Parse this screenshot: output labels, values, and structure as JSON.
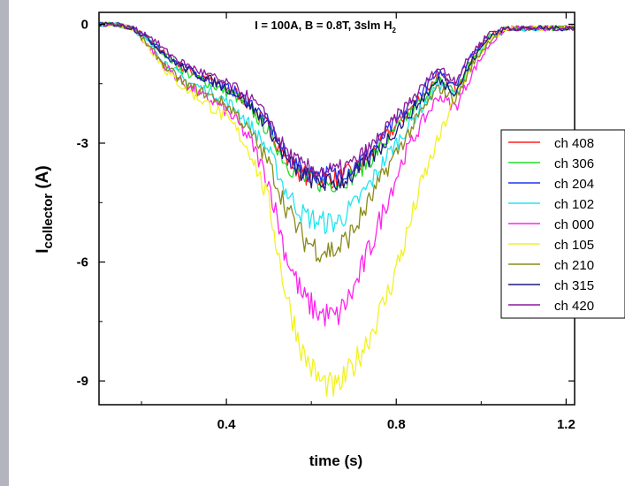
{
  "chart_data": {
    "type": "line",
    "title": "I = 100A, B = 0.8T, 3slm H",
    "title_subscript": "2",
    "xlabel": "time (s)",
    "ylabel_main": "I",
    "ylabel_sub": "collector",
    "ylabel_unit": " (A)",
    "xlim": [
      0.1,
      1.22
    ],
    "ylim": [
      -9.6,
      0.3
    ],
    "x_ticks": [
      0.4,
      0.8,
      1.2
    ],
    "x_tick_labels": [
      "0.4",
      "0.8",
      "1.2"
    ],
    "y_ticks": [
      0,
      -3,
      -6,
      -9
    ],
    "y_tick_labels": [
      "0",
      "-3",
      "-6",
      "-9"
    ],
    "grid": false,
    "legend_position": "right",
    "x": [
      0.1,
      0.14,
      0.18,
      0.22,
      0.26,
      0.3,
      0.34,
      0.38,
      0.42,
      0.46,
      0.5,
      0.54,
      0.58,
      0.62,
      0.66,
      0.7,
      0.74,
      0.78,
      0.82,
      0.86,
      0.9,
      0.94,
      0.98,
      1.02,
      1.06,
      1.1,
      1.14,
      1.18,
      1.22
    ],
    "series": [
      {
        "name": "ch 408",
        "color": "#ff2020",
        "values": [
          0.0,
          0.0,
          -0.1,
          -0.4,
          -0.8,
          -1.1,
          -1.3,
          -1.5,
          -1.7,
          -2.1,
          -2.6,
          -3.4,
          -3.8,
          -3.9,
          -3.9,
          -3.7,
          -3.3,
          -2.8,
          -2.3,
          -1.8,
          -1.3,
          -1.6,
          -0.8,
          -0.3,
          -0.1,
          -0.1,
          -0.1,
          -0.1,
          -0.1
        ]
      },
      {
        "name": "ch 306",
        "color": "#22dd22",
        "values": [
          0.0,
          0.0,
          -0.1,
          -0.4,
          -0.8,
          -1.2,
          -1.4,
          -1.6,
          -1.8,
          -2.2,
          -2.7,
          -3.5,
          -3.9,
          -4.0,
          -4.0,
          -3.8,
          -3.4,
          -2.9,
          -2.4,
          -1.9,
          -1.4,
          -1.7,
          -0.9,
          -0.3,
          -0.1,
          -0.1,
          -0.1,
          -0.1,
          -0.1
        ]
      },
      {
        "name": "ch 204",
        "color": "#2233ee",
        "values": [
          0.0,
          0.0,
          -0.1,
          -0.4,
          -0.8,
          -1.1,
          -1.3,
          -1.5,
          -1.7,
          -2.0,
          -2.5,
          -3.3,
          -3.7,
          -3.8,
          -3.8,
          -3.6,
          -3.2,
          -2.7,
          -2.2,
          -1.7,
          -1.2,
          -1.5,
          -0.7,
          -0.3,
          -0.1,
          -0.1,
          -0.1,
          -0.1,
          -0.1
        ]
      },
      {
        "name": "ch 102",
        "color": "#22e5ee",
        "values": [
          0.0,
          0.0,
          -0.1,
          -0.5,
          -1.0,
          -1.4,
          -1.6,
          -1.8,
          -2.1,
          -2.6,
          -3.2,
          -4.2,
          -4.8,
          -5.0,
          -5.0,
          -4.6,
          -4.0,
          -3.3,
          -2.7,
          -2.1,
          -1.5,
          -1.8,
          -1.0,
          -0.4,
          -0.1,
          -0.1,
          -0.1,
          -0.1,
          -0.1
        ]
      },
      {
        "name": "ch 000",
        "color": "#ff22ee",
        "values": [
          0.0,
          0.0,
          -0.1,
          -0.6,
          -1.1,
          -1.5,
          -1.8,
          -2.0,
          -2.4,
          -3.0,
          -4.0,
          -5.8,
          -6.9,
          -7.3,
          -7.4,
          -6.7,
          -5.6,
          -4.4,
          -3.3,
          -2.5,
          -1.8,
          -2.1,
          -1.2,
          -0.5,
          -0.1,
          -0.1,
          -0.1,
          -0.1,
          -0.1
        ]
      },
      {
        "name": "ch 105",
        "color": "#f2f222",
        "values": [
          0.0,
          0.0,
          -0.1,
          -0.6,
          -1.2,
          -1.6,
          -1.9,
          -2.2,
          -2.6,
          -3.3,
          -4.5,
          -6.8,
          -8.3,
          -9.0,
          -9.2,
          -8.6,
          -7.8,
          -6.8,
          -5.5,
          -4.0,
          -2.9,
          -1.8,
          -1.0,
          -0.4,
          -0.1,
          -0.1,
          -0.1,
          -0.1,
          -0.1
        ]
      },
      {
        "name": "ch 210",
        "color": "#8a8a1a",
        "values": [
          0.0,
          0.0,
          -0.1,
          -0.6,
          -1.1,
          -1.5,
          -1.7,
          -1.9,
          -2.2,
          -2.8,
          -3.5,
          -4.6,
          -5.4,
          -5.7,
          -5.7,
          -5.2,
          -4.4,
          -3.6,
          -2.9,
          -2.2,
          -1.6,
          -1.9,
          -1.0,
          -0.4,
          -0.1,
          -0.1,
          -0.1,
          -0.1,
          -0.1
        ]
      },
      {
        "name": "ch 315",
        "color": "#1a1a80",
        "values": [
          0.0,
          0.0,
          -0.1,
          -0.4,
          -0.8,
          -1.1,
          -1.3,
          -1.5,
          -1.7,
          -2.1,
          -2.6,
          -3.4,
          -3.8,
          -4.0,
          -4.0,
          -3.8,
          -3.4,
          -2.9,
          -2.4,
          -1.9,
          -1.4,
          -1.7,
          -0.9,
          -0.3,
          -0.1,
          -0.1,
          -0.1,
          -0.1,
          -0.1
        ]
      },
      {
        "name": "ch 420",
        "color": "#8a1a9a",
        "values": [
          0.0,
          0.0,
          -0.1,
          -0.3,
          -0.7,
          -1.0,
          -1.2,
          -1.4,
          -1.6,
          -1.9,
          -2.4,
          -3.2,
          -3.6,
          -3.7,
          -3.7,
          -3.5,
          -3.1,
          -2.6,
          -2.1,
          -1.6,
          -1.1,
          -1.4,
          -0.7,
          -0.2,
          -0.1,
          -0.1,
          -0.1,
          -0.1,
          -0.1
        ]
      }
    ]
  }
}
